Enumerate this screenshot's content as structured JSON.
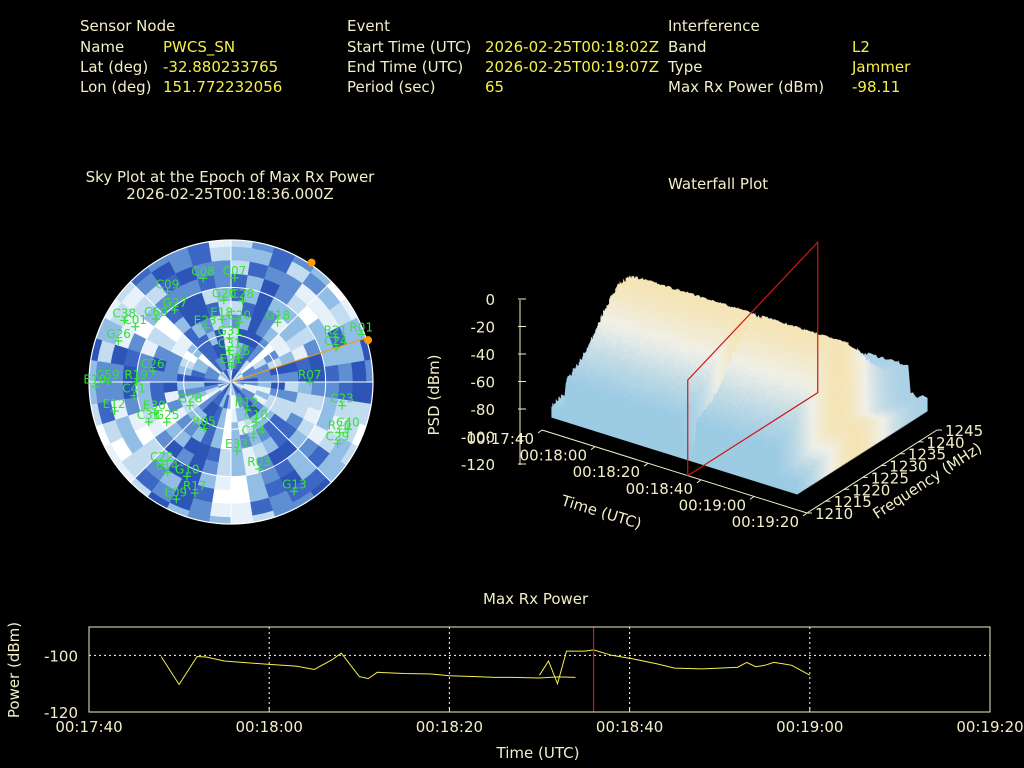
{
  "header": {
    "sensor": {
      "heading": "Sensor Node",
      "name_label": "Name",
      "name_value": "PWCS_SN",
      "lat_label": "Lat (deg)",
      "lat_value": "-32.880233765",
      "lon_label": "Lon (deg)",
      "lon_value": "151.772232056"
    },
    "event": {
      "heading": "Event",
      "start_label": "Start Time (UTC)",
      "start_value": "2026-02-25T00:18:02Z",
      "end_label": "End Time (UTC)",
      "end_value": "2026-02-25T00:19:07Z",
      "period_label": "Period (sec)",
      "period_value": "65"
    },
    "interference": {
      "heading": "Interference",
      "band_label": "Band",
      "band_value": "L2",
      "type_label": "Type",
      "type_value": "Jammer",
      "power_label": "Max Rx Power (dBm)",
      "power_value": "-98.11"
    }
  },
  "skyplot": {
    "title": "Sky Plot at the Epoch of Max Rx Power",
    "subtitle": "2026-02-25T00:18:36.000Z",
    "jammer_azimuth_deg": 72,
    "colors": {
      "label": "#36e236",
      "jammer": "#ff9a00"
    },
    "satellites": [
      {
        "id": "E21",
        "az": 2,
        "el": 80
      },
      {
        "id": "C25",
        "az": 18,
        "el": 74
      },
      {
        "id": "G31",
        "az": 358,
        "el": 62
      },
      {
        "id": "C31",
        "az": 358,
        "el": 70
      },
      {
        "id": "E23",
        "az": 335,
        "el": 52
      },
      {
        "id": "E18",
        "az": 352,
        "el": 50
      },
      {
        "id": "C20",
        "az": 8,
        "el": 52
      },
      {
        "id": "G18",
        "az": 38,
        "el": 42
      },
      {
        "id": "C28",
        "az": 8,
        "el": 38
      },
      {
        "id": "G20",
        "az": 355,
        "el": 38
      },
      {
        "id": "G27",
        "az": 322,
        "el": 32
      },
      {
        "id": "C60",
        "az": 310,
        "el": 28
      },
      {
        "id": "C01",
        "az": 300,
        "el": 20
      },
      {
        "id": "C09",
        "az": 325,
        "el": 20
      },
      {
        "id": "C08",
        "az": 345,
        "el": 22
      },
      {
        "id": "C07",
        "az": 2,
        "el": 24
      },
      {
        "id": "G26",
        "az": 290,
        "el": 14
      },
      {
        "id": "C38",
        "az": 300,
        "el": 12
      },
      {
        "id": "R21",
        "az": 67,
        "el": 18
      },
      {
        "id": "C24",
        "az": 72,
        "el": 20
      },
      {
        "id": "R07",
        "az": 90,
        "el": 40
      },
      {
        "id": "C23",
        "az": 102,
        "el": 18
      },
      {
        "id": "C59",
        "az": 270,
        "el": 12
      },
      {
        "id": "R20",
        "az": 115,
        "el": 14
      },
      {
        "id": "C40",
        "az": 112,
        "el": 10
      },
      {
        "id": "R19",
        "az": 270,
        "el": 30
      },
      {
        "id": "C26",
        "az": 278,
        "el": 40
      },
      {
        "id": "E10",
        "az": 268,
        "el": 4
      },
      {
        "id": "E12",
        "az": 256,
        "el": 14
      },
      {
        "id": "C41",
        "az": 262,
        "el": 28
      },
      {
        "id": "E30",
        "az": 248,
        "el": 38
      },
      {
        "id": "G25",
        "az": 238,
        "el": 42
      },
      {
        "id": "R05",
        "az": 210,
        "el": 56
      },
      {
        "id": "C33",
        "az": 244,
        "el": 32
      },
      {
        "id": "G28",
        "az": 240,
        "el": 60
      },
      {
        "id": "R12",
        "az": 150,
        "el": 70
      },
      {
        "id": "C10",
        "az": 148,
        "el": 60
      },
      {
        "id": "C14",
        "az": 158,
        "el": 52
      },
      {
        "id": "E33",
        "az": 175,
        "el": 46
      },
      {
        "id": "R03",
        "az": 162,
        "el": 32
      },
      {
        "id": "C29",
        "az": 120,
        "el": 12
      },
      {
        "id": "G10",
        "az": 205,
        "el": 24
      },
      {
        "id": "E14",
        "az": 215,
        "el": 20
      },
      {
        "id": "C22",
        "az": 220,
        "el": 22
      },
      {
        "id": "R17",
        "az": 198,
        "el": 16
      },
      {
        "id": "G13",
        "az": 150,
        "el": 10
      },
      {
        "id": "E09",
        "az": 205,
        "el": 8
      },
      {
        "id": "R01",
        "az": 70,
        "el": 2
      }
    ]
  },
  "waterfall": {
    "title": "Waterfall Plot",
    "z_label": "PSD (dBm)",
    "x_label": "Time (UTC)",
    "y_label": "Frequency (MHz)",
    "z_ticks": [
      "0",
      "-20",
      "-40",
      "-60",
      "-80",
      "-100",
      "-120"
    ],
    "x_ticks": [
      "00:17:40",
      "00:18:00",
      "00:18:20",
      "00:18:40",
      "00:19:00",
      "00:19:20"
    ],
    "y_ticks": [
      "1210",
      "1215",
      "1220",
      "1225",
      "1230",
      "1235",
      "1240",
      "1245"
    ],
    "epoch_marker_color": "#d01818"
  },
  "chart_data": {
    "type": "line",
    "title": "Max Rx Power",
    "xlabel": "Time (UTC)",
    "ylabel": "Power (dBm)",
    "xlim": [
      "00:17:40",
      "00:19:20"
    ],
    "ylim": [
      -120,
      -90
    ],
    "x_ticks": [
      "00:17:40",
      "00:18:00",
      "00:18:20",
      "00:18:40",
      "00:19:00",
      "00:19:20"
    ],
    "y_ticks": [
      "-100",
      "-120"
    ],
    "grid": true,
    "series_color": "#f5f04a",
    "marker_time": "00:18:36",
    "segments": [
      [
        [
          "00:17:48",
          -100.4
        ],
        [
          "00:17:50",
          -110.3
        ],
        [
          "00:17:52",
          -100.4
        ],
        [
          "00:17:53",
          -100.6
        ],
        [
          "00:17:55",
          -102.0
        ],
        [
          "00:17:57",
          -102.5
        ],
        [
          "00:18:00",
          -103.2
        ],
        [
          "00:18:03",
          -103.8
        ],
        [
          "00:18:05",
          -105.0
        ],
        [
          "00:18:07",
          -101.5
        ],
        [
          "00:18:08",
          -99.2
        ],
        [
          "00:18:10",
          -107.5
        ],
        [
          "00:18:11",
          -108.2
        ],
        [
          "00:18:12",
          -106.0
        ],
        [
          "00:18:15",
          -106.4
        ],
        [
          "00:18:18",
          -106.6
        ],
        [
          "00:18:20",
          -107.2
        ],
        [
          "00:18:23",
          -107.5
        ],
        [
          "00:18:25",
          -107.8
        ],
        [
          "00:18:27",
          -107.8
        ],
        [
          "00:18:30",
          -108.0
        ],
        [
          "00:18:32",
          -107.6
        ],
        [
          "00:18:34",
          -107.8
        ]
      ],
      [
        [
          "00:18:30",
          -107.0
        ],
        [
          "00:18:31",
          -102.0
        ],
        [
          "00:18:32",
          -110.0
        ],
        [
          "00:18:33",
          -98.5
        ],
        [
          "00:18:35",
          -98.5
        ],
        [
          "00:18:36",
          -98.1
        ],
        [
          "00:18:38",
          -100.0
        ],
        [
          "00:18:40",
          -101.0
        ],
        [
          "00:18:43",
          -103.0
        ],
        [
          "00:18:45",
          -104.5
        ],
        [
          "00:18:48",
          -104.8
        ],
        [
          "00:18:50",
          -104.5
        ],
        [
          "00:18:52",
          -104.2
        ],
        [
          "00:18:53",
          -102.5
        ],
        [
          "00:18:54",
          -104.0
        ],
        [
          "00:18:55",
          -103.5
        ],
        [
          "00:18:56",
          -102.5
        ],
        [
          "00:18:57",
          -103.0
        ],
        [
          "00:18:58",
          -103.5
        ],
        [
          "00:19:00",
          -107.0
        ]
      ]
    ]
  }
}
